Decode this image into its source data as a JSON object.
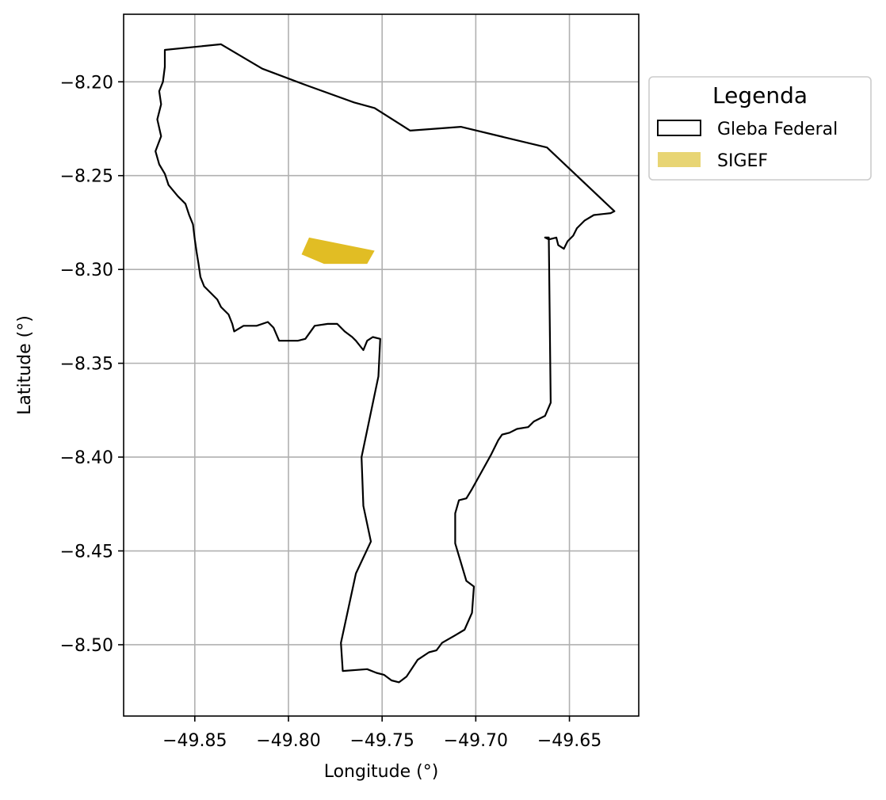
{
  "chart_data": {
    "type": "map",
    "xlabel": "Longitude (°)",
    "ylabel": "Latitude (°)",
    "xlim": [
      -49.888,
      -49.613
    ],
    "ylim": [
      -8.538,
      -8.164
    ],
    "grid": true,
    "x_ticks": [
      -49.85,
      -49.8,
      -49.75,
      -49.7,
      -49.65
    ],
    "x_tick_labels": [
      "−49.85",
      "−49.80",
      "−49.75",
      "−49.70",
      "−49.65"
    ],
    "y_ticks": [
      -8.2,
      -8.25,
      -8.3,
      -8.35,
      -8.4,
      -8.45,
      -8.5
    ],
    "y_tick_labels": [
      "−8.20",
      "−8.25",
      "−8.30",
      "−8.35",
      "−8.40",
      "−8.45",
      "−8.50"
    ],
    "legend": {
      "title": "Legenda",
      "placement": "outside right, top",
      "entries": [
        {
          "label": "Gleba Federal",
          "style": "outline",
          "color": "#000000"
        },
        {
          "label": "SIGEF",
          "style": "fill",
          "color": "#e8d574"
        }
      ]
    },
    "layers": [
      {
        "name": "Gleba Federal",
        "kind": "polygon-outline",
        "stroke": "#000000",
        "coordinates": [
          [
            -49.836,
            -8.18
          ],
          [
            -49.814,
            -8.193
          ],
          [
            -49.79,
            -8.202
          ],
          [
            -49.765,
            -8.211
          ],
          [
            -49.754,
            -8.214
          ],
          [
            -49.735,
            -8.226
          ],
          [
            -49.708,
            -8.224
          ],
          [
            -49.662,
            -8.235
          ],
          [
            -49.626,
            -8.269
          ],
          [
            -49.628,
            -8.27
          ],
          [
            -49.637,
            -8.271
          ],
          [
            -49.642,
            -8.274
          ],
          [
            -49.646,
            -8.278
          ],
          [
            -49.648,
            -8.282
          ],
          [
            -49.651,
            -8.285
          ],
          [
            -49.653,
            -8.289
          ],
          [
            -49.656,
            -8.287
          ],
          [
            -49.657,
            -8.283
          ],
          [
            -49.661,
            -8.284
          ],
          [
            -49.663,
            -8.283
          ],
          [
            -49.661,
            -8.283
          ],
          [
            -49.66,
            -8.371
          ],
          [
            -49.663,
            -8.378
          ],
          [
            -49.669,
            -8.381
          ],
          [
            -49.672,
            -8.384
          ],
          [
            -49.678,
            -8.385
          ],
          [
            -49.682,
            -8.387
          ],
          [
            -49.686,
            -8.388
          ],
          [
            -49.688,
            -8.391
          ],
          [
            -49.692,
            -8.399
          ],
          [
            -49.697,
            -8.408
          ],
          [
            -49.702,
            -8.417
          ],
          [
            -49.705,
            -8.422
          ],
          [
            -49.709,
            -8.423
          ],
          [
            -49.711,
            -8.43
          ],
          [
            -49.711,
            -8.446
          ],
          [
            -49.705,
            -8.466
          ],
          [
            -49.701,
            -8.469
          ],
          [
            -49.702,
            -8.483
          ],
          [
            -49.706,
            -8.492
          ],
          [
            -49.711,
            -8.495
          ],
          [
            -49.718,
            -8.499
          ],
          [
            -49.721,
            -8.503
          ],
          [
            -49.725,
            -8.504
          ],
          [
            -49.731,
            -8.508
          ],
          [
            -49.737,
            -8.517
          ],
          [
            -49.741,
            -8.52
          ],
          [
            -49.745,
            -8.519
          ],
          [
            -49.749,
            -8.516
          ],
          [
            -49.753,
            -8.515
          ],
          [
            -49.758,
            -8.513
          ],
          [
            -49.771,
            -8.514
          ],
          [
            -49.772,
            -8.499
          ],
          [
            -49.764,
            -8.462
          ],
          [
            -49.756,
            -8.445
          ],
          [
            -49.76,
            -8.426
          ],
          [
            -49.761,
            -8.4
          ],
          [
            -49.752,
            -8.357
          ],
          [
            -49.751,
            -8.337
          ],
          [
            -49.755,
            -8.336
          ],
          [
            -49.758,
            -8.338
          ],
          [
            -49.76,
            -8.343
          ],
          [
            -49.764,
            -8.338
          ],
          [
            -49.766,
            -8.336
          ],
          [
            -49.77,
            -8.333
          ],
          [
            -49.774,
            -8.329
          ],
          [
            -49.779,
            -8.329
          ],
          [
            -49.786,
            -8.33
          ],
          [
            -49.791,
            -8.337
          ],
          [
            -49.795,
            -8.338
          ],
          [
            -49.799,
            -8.338
          ],
          [
            -49.805,
            -8.338
          ],
          [
            -49.808,
            -8.331
          ],
          [
            -49.811,
            -8.328
          ],
          [
            -49.817,
            -8.33
          ],
          [
            -49.824,
            -8.33
          ],
          [
            -49.829,
            -8.333
          ],
          [
            -49.83,
            -8.329
          ],
          [
            -49.832,
            -8.324
          ],
          [
            -49.836,
            -8.32
          ],
          [
            -49.838,
            -8.316
          ],
          [
            -49.841,
            -8.313
          ],
          [
            -49.845,
            -8.309
          ],
          [
            -49.847,
            -8.304
          ],
          [
            -49.848,
            -8.297
          ],
          [
            -49.849,
            -8.291
          ],
          [
            -49.85,
            -8.284
          ],
          [
            -49.851,
            -8.276
          ],
          [
            -49.853,
            -8.271
          ],
          [
            -49.855,
            -8.265
          ],
          [
            -49.859,
            -8.261
          ],
          [
            -49.864,
            -8.255
          ],
          [
            -49.866,
            -8.249
          ],
          [
            -49.869,
            -8.244
          ],
          [
            -49.871,
            -8.237
          ],
          [
            -49.868,
            -8.229
          ],
          [
            -49.87,
            -8.22
          ],
          [
            -49.868,
            -8.212
          ],
          [
            -49.869,
            -8.205
          ],
          [
            -49.867,
            -8.2
          ],
          [
            -49.866,
            -8.192
          ],
          [
            -49.866,
            -8.183
          ]
        ]
      },
      {
        "name": "SIGEF",
        "kind": "polygon-fill",
        "fill": "#e1bd24",
        "coordinates": [
          [
            -49.789,
            -8.283
          ],
          [
            -49.754,
            -8.29
          ],
          [
            -49.758,
            -8.297
          ],
          [
            -49.781,
            -8.297
          ],
          [
            -49.793,
            -8.292
          ]
        ]
      }
    ]
  }
}
